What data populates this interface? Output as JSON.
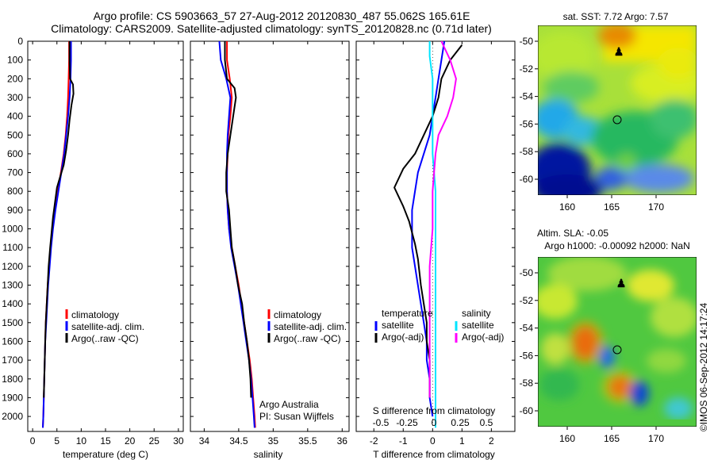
{
  "header": {
    "line1": "Argo profile: CS 5903663_57 27-Aug-2012 20120830_487 55.062S 165.61E",
    "line2": "Climatology: CARS2009. Satellite-adjusted climatology: synTS_20120828.nc (0.71d later)"
  },
  "colors": {
    "climatology": "#ff0000",
    "satellite": "#0000ff",
    "argo": "#000000",
    "cyan": "#00e5ff",
    "magenta": "#ff00ff"
  },
  "chart_data": [
    {
      "type": "line",
      "xlabel": "temperature (deg C)",
      "ylabel": "",
      "xlim": [
        -1,
        31
      ],
      "ylim": [
        2080,
        0
      ],
      "xticks": [
        0,
        5,
        10,
        15,
        20,
        25,
        30
      ],
      "yticks": [
        0,
        100,
        200,
        300,
        400,
        500,
        600,
        700,
        800,
        900,
        1000,
        1100,
        1200,
        1300,
        1400,
        1500,
        1600,
        1700,
        1800,
        1900,
        2000
      ],
      "legend": [
        "climatology",
        "satellite-adj. clim.",
        "Argo(..raw -QC)"
      ],
      "legend_position": "lower-right",
      "series": [
        {
          "name": "climatology",
          "color": "climatology",
          "points": [
            [
              7.5,
              0
            ],
            [
              7.5,
              100
            ],
            [
              7.4,
              200
            ],
            [
              7.3,
              300
            ],
            [
              7.1,
              400
            ],
            [
              6.8,
              500
            ],
            [
              6.4,
              600
            ],
            [
              5.8,
              700
            ],
            [
              5.2,
              800
            ],
            [
              4.6,
              900
            ],
            [
              4.1,
              1000
            ],
            [
              3.7,
              1100
            ],
            [
              3.4,
              1200
            ],
            [
              3.1,
              1300
            ],
            [
              2.9,
              1400
            ],
            [
              2.7,
              1500
            ],
            [
              2.6,
              1600
            ],
            [
              2.5,
              1700
            ],
            [
              2.4,
              1800
            ],
            [
              2.3,
              1900
            ],
            [
              2.2,
              2000
            ],
            [
              2.1,
              2060
            ]
          ]
        },
        {
          "name": "satellite-adj. clim.",
          "color": "satellite",
          "points": [
            [
              7.9,
              0
            ],
            [
              7.9,
              100
            ],
            [
              7.8,
              200
            ],
            [
              7.6,
              300
            ],
            [
              7.3,
              400
            ],
            [
              6.9,
              500
            ],
            [
              6.5,
              600
            ],
            [
              5.9,
              700
            ],
            [
              5.3,
              800
            ],
            [
              4.7,
              900
            ],
            [
              4.2,
              1000
            ],
            [
              3.8,
              1100
            ],
            [
              3.5,
              1200
            ],
            [
              3.2,
              1300
            ],
            [
              3.0,
              1400
            ],
            [
              2.8,
              1500
            ],
            [
              2.6,
              1600
            ],
            [
              2.5,
              1700
            ],
            [
              2.4,
              1800
            ],
            [
              2.3,
              1900
            ],
            [
              2.2,
              2000
            ],
            [
              2.1,
              2060
            ]
          ]
        },
        {
          "name": "Argo(..raw -QC)",
          "color": "argo",
          "points": [
            [
              7.6,
              0
            ],
            [
              7.6,
              100
            ],
            [
              7.7,
              200
            ],
            [
              8.3,
              230
            ],
            [
              8.4,
              280
            ],
            [
              8.0,
              340
            ],
            [
              7.6,
              420
            ],
            [
              7.3,
              500
            ],
            [
              6.9,
              580
            ],
            [
              6.4,
              660
            ],
            [
              5.7,
              720
            ],
            [
              5.0,
              780
            ],
            [
              4.6,
              860
            ],
            [
              4.2,
              940
            ],
            [
              3.9,
              1020
            ],
            [
              3.6,
              1100
            ],
            [
              3.3,
              1200
            ],
            [
              3.1,
              1300
            ],
            [
              2.9,
              1400
            ],
            [
              2.7,
              1500
            ],
            [
              2.6,
              1600
            ],
            [
              2.5,
              1700
            ],
            [
              2.4,
              1800
            ],
            [
              2.3,
              1900
            ]
          ]
        }
      ]
    },
    {
      "type": "line",
      "xlabel": "salinity",
      "ylabel": "",
      "xlim": [
        33.8,
        36.1
      ],
      "ylim": [
        2080,
        0
      ],
      "xticks": [
        34,
        34.5,
        35,
        35.5,
        36
      ],
      "legend": [
        "climatology",
        "satellite-adj. clim.",
        "Argo(..raw -QC)"
      ],
      "legend_position": "lower-right",
      "annotations": [
        "Argo Australia",
        "PI: Susan Wijffels"
      ],
      "series": [
        {
          "name": "climatology",
          "color": "climatology",
          "points": [
            [
              34.33,
              0
            ],
            [
              34.33,
              100
            ],
            [
              34.37,
              200
            ],
            [
              34.4,
              300
            ],
            [
              34.38,
              400
            ],
            [
              34.35,
              500
            ],
            [
              34.34,
              600
            ],
            [
              34.33,
              700
            ],
            [
              34.33,
              800
            ],
            [
              34.34,
              900
            ],
            [
              34.36,
              1000
            ],
            [
              34.4,
              1100
            ],
            [
              34.45,
              1200
            ],
            [
              34.5,
              1300
            ],
            [
              34.54,
              1400
            ],
            [
              34.58,
              1500
            ],
            [
              34.62,
              1600
            ],
            [
              34.66,
              1700
            ],
            [
              34.69,
              1800
            ],
            [
              34.71,
              1900
            ],
            [
              34.73,
              2000
            ],
            [
              34.74,
              2060
            ]
          ]
        },
        {
          "name": "satellite-adj. clim.",
          "color": "satellite",
          "points": [
            [
              34.22,
              0
            ],
            [
              34.24,
              100
            ],
            [
              34.32,
              200
            ],
            [
              34.38,
              300
            ],
            [
              34.36,
              400
            ],
            [
              34.34,
              500
            ],
            [
              34.33,
              600
            ],
            [
              34.33,
              700
            ],
            [
              34.33,
              800
            ],
            [
              34.34,
              900
            ],
            [
              34.36,
              1000
            ],
            [
              34.39,
              1100
            ],
            [
              34.44,
              1200
            ],
            [
              34.49,
              1300
            ],
            [
              34.53,
              1400
            ],
            [
              34.57,
              1500
            ],
            [
              34.61,
              1600
            ],
            [
              34.65,
              1700
            ],
            [
              34.68,
              1800
            ],
            [
              34.7,
              1900
            ],
            [
              34.72,
              2000
            ],
            [
              34.73,
              2060
            ]
          ]
        },
        {
          "name": "Argo(..raw -QC)",
          "color": "argo",
          "points": [
            [
              34.3,
              0
            ],
            [
              34.3,
              100
            ],
            [
              34.33,
              200
            ],
            [
              34.44,
              250
            ],
            [
              34.46,
              300
            ],
            [
              34.42,
              400
            ],
            [
              34.38,
              500
            ],
            [
              34.34,
              600
            ],
            [
              34.32,
              700
            ],
            [
              34.32,
              800
            ],
            [
              34.36,
              900
            ],
            [
              34.38,
              1000
            ],
            [
              34.4,
              1100
            ],
            [
              34.45,
              1200
            ],
            [
              34.49,
              1300
            ],
            [
              34.55,
              1400
            ],
            [
              34.58,
              1500
            ],
            [
              34.62,
              1600
            ],
            [
              34.65,
              1700
            ],
            [
              34.67,
              1800
            ],
            [
              34.68,
              1900
            ]
          ]
        }
      ]
    },
    {
      "type": "line",
      "xlabel": "T difference from climatology",
      "xlabel_top": "S difference from climatology",
      "ylabel": "",
      "xlim": [
        -2.6,
        2.8
      ],
      "ylim": [
        2080,
        0
      ],
      "xticks": [
        -2,
        -1,
        0,
        1,
        2
      ],
      "s_ticks": [
        "-0.5",
        "-0.25",
        "0",
        "0.25",
        "0.5"
      ],
      "legend_temperature": {
        "title": "temperature",
        "items": [
          "satellite",
          "Argo(-adj)"
        ]
      },
      "legend_salinity": {
        "title": "salinity",
        "items": [
          "satellite",
          "Argo(-adj)"
        ]
      },
      "series": [
        {
          "name": "temperature satellite",
          "color": "satellite",
          "points": [
            [
              0.4,
              0
            ],
            [
              0.3,
              100
            ],
            [
              0.2,
              200
            ],
            [
              0.1,
              300
            ],
            [
              0.0,
              400
            ],
            [
              -0.1,
              500
            ],
            [
              -0.3,
              600
            ],
            [
              -0.5,
              700
            ],
            [
              -0.6,
              800
            ],
            [
              -0.7,
              900
            ],
            [
              -0.7,
              1000
            ],
            [
              -0.7,
              1100
            ],
            [
              -0.6,
              1200
            ],
            [
              -0.5,
              1300
            ],
            [
              -0.4,
              1400
            ],
            [
              -0.3,
              1500
            ],
            [
              -0.2,
              1600
            ],
            [
              -0.2,
              1700
            ],
            [
              -0.1,
              1800
            ],
            [
              -0.1,
              1900
            ],
            [
              0.0,
              2000
            ]
          ]
        },
        {
          "name": "temperature Argo(-adj)",
          "color": "argo",
          "points": [
            [
              1.0,
              20
            ],
            [
              0.6,
              100
            ],
            [
              0.3,
              200
            ],
            [
              0.2,
              300
            ],
            [
              0.0,
              400
            ],
            [
              -0.3,
              500
            ],
            [
              -0.6,
              600
            ],
            [
              -1.0,
              680
            ],
            [
              -1.3,
              780
            ],
            [
              -1.0,
              880
            ],
            [
              -0.8,
              960
            ],
            [
              -0.6,
              1080
            ],
            [
              -0.5,
              1160
            ],
            [
              -0.4,
              1300
            ],
            [
              -0.3,
              1400
            ],
            [
              -0.2,
              1500
            ],
            [
              -0.2,
              1600
            ],
            [
              -0.1,
              1700
            ],
            [
              -0.1,
              1800
            ],
            [
              -0.1,
              1900
            ]
          ]
        },
        {
          "name": "salinity satellite",
          "color": "cyan",
          "points": [
            [
              -0.1,
              0
            ],
            [
              -0.1,
              80
            ],
            [
              0.0,
              200
            ],
            [
              0.0,
              300
            ],
            [
              0.0,
              400
            ],
            [
              0.0,
              600
            ],
            [
              0.1,
              800
            ],
            [
              0.1,
              1000
            ],
            [
              0.1,
              1200
            ],
            [
              0.1,
              1400
            ],
            [
              0.1,
              1600
            ],
            [
              0.1,
              1800
            ],
            [
              0.1,
              2000
            ],
            [
              0.1,
              2060
            ]
          ]
        },
        {
          "name": "salinity Argo(-adj)",
          "color": "magenta",
          "points": [
            [
              0.3,
              0
            ],
            [
              0.6,
              100
            ],
            [
              0.8,
              200
            ],
            [
              0.7,
              300
            ],
            [
              0.5,
              400
            ],
            [
              0.2,
              500
            ],
            [
              0.1,
              600
            ],
            [
              0.0,
              800
            ],
            [
              0.0,
              1000
            ],
            [
              -0.1,
              1200
            ],
            [
              -0.1,
              1400
            ],
            [
              -0.1,
              1600
            ],
            [
              -0.1,
              1800
            ],
            [
              -0.1,
              1900
            ]
          ]
        }
      ]
    }
  ],
  "maps": {
    "sst_title": "sat. SST: 7.72 Argo: 7.57",
    "sla_title_1": "Altim. SLA: -0.05",
    "sla_title_2": "Argo h1000: -0.00092 h2000: NaN",
    "lat_ticks": [
      "-50",
      "-52",
      "-54",
      "-56",
      "-58",
      "-60"
    ],
    "lon_ticks": [
      "160",
      "165",
      "170"
    ],
    "credit": "©IMOS 06-Sep-2012 14:17:24"
  }
}
